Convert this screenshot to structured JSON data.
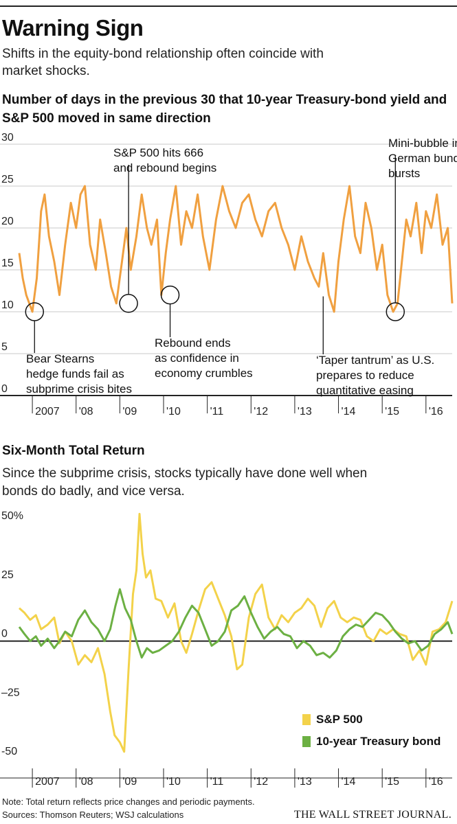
{
  "header": {
    "title": "Warning Sign",
    "subtitle": "Shifts in the equity-bond relationship often coincide with market shocks."
  },
  "footer": {
    "note": "Note: Total return reflects price changes and periodic payments.",
    "sources": "Sources: Thomson Reuters; WSJ calculations",
    "logo": "THE WALL STREET JOURNAL."
  },
  "colors": {
    "orange": "#f0a040",
    "yellow": "#f3d24a",
    "green": "#6cb043",
    "grid": "#c9c9c9"
  },
  "chart_data": [
    {
      "type": "line",
      "title": "Number of days in the previous 30 that 10-year Treasury-bond yield and S&P 500 moved in same direction",
      "xlabel": "",
      "ylabel": "",
      "xlim": [
        2006.7,
        2016.6
      ],
      "ylim": [
        0,
        30
      ],
      "yticks": [
        0,
        5,
        10,
        15,
        20,
        25,
        30
      ],
      "xticks": [
        {
          "label": "2007",
          "value": 2007.0
        },
        {
          "label": "'08",
          "value": 2008.0
        },
        {
          "label": "'09",
          "value": 2009.0
        },
        {
          "label": "'10",
          "value": 2010.0
        },
        {
          "label": "'11",
          "value": 2011.0
        },
        {
          "label": "'12",
          "value": 2012.0
        },
        {
          "label": "'13",
          "value": 2013.0
        },
        {
          "label": "'14",
          "value": 2014.0
        },
        {
          "label": "'15",
          "value": 2015.0
        },
        {
          "label": "'16",
          "value": 2016.0
        }
      ],
      "grid": true,
      "series": [
        {
          "x": [
            2006.7,
            2006.78,
            2006.86,
            2007.0,
            2007.1,
            2007.2,
            2007.28,
            2007.38,
            2007.5,
            2007.62,
            2007.75,
            2007.88,
            2008.0,
            2008.1,
            2008.2,
            2008.32,
            2008.45,
            2008.55,
            2008.68,
            2008.8,
            2008.92,
            2009.05,
            2009.15,
            2009.25,
            2009.38,
            2009.5,
            2009.62,
            2009.72,
            2009.85,
            2009.95,
            2010.05,
            2010.15,
            2010.28,
            2010.4,
            2010.52,
            2010.65,
            2010.78,
            2010.9,
            2011.05,
            2011.2,
            2011.35,
            2011.5,
            2011.65,
            2011.8,
            2011.95,
            2012.1,
            2012.25,
            2012.4,
            2012.55,
            2012.7,
            2012.85,
            2013.0,
            2013.15,
            2013.3,
            2013.45,
            2013.55,
            2013.65,
            2013.78,
            2013.9,
            2014.0,
            2014.12,
            2014.25,
            2014.38,
            2014.5,
            2014.62,
            2014.75,
            2014.88,
            2015.0,
            2015.12,
            2015.25,
            2015.35,
            2015.45,
            2015.55,
            2015.65,
            2015.78,
            2015.9,
            2016.0,
            2016.12,
            2016.25,
            2016.38,
            2016.5,
            2016.6
          ],
          "y": [
            17,
            14,
            12,
            10,
            14,
            22,
            24,
            19,
            16,
            12,
            18,
            23,
            20,
            24,
            25,
            18,
            15,
            21,
            17,
            13,
            11,
            16,
            20,
            15,
            19,
            24,
            20,
            18,
            21,
            12,
            17,
            21,
            25,
            18,
            22,
            20,
            24,
            19,
            15,
            21,
            25,
            22,
            20,
            23,
            24,
            21,
            19,
            22,
            23,
            20,
            18,
            15,
            19,
            16,
            14,
            13,
            17,
            12,
            10,
            16,
            21,
            25,
            19,
            17,
            23,
            20,
            15,
            18,
            12,
            10,
            11,
            16,
            21,
            19,
            23,
            17,
            22,
            20,
            24,
            18,
            20,
            11
          ]
        }
      ]
    },
    {
      "type": "line",
      "title": "Six-Month Total Return",
      "subtitle": "Since the subprime crisis, stocks typically have done well when bonds do badly, and vice versa.",
      "xlabel": "",
      "ylabel": "",
      "xlim": [
        2006.7,
        2016.6
      ],
      "ylim": [
        -50,
        55
      ],
      "yticks": [
        {
          "label": "50%",
          "value": 50
        },
        {
          "label": "25",
          "value": 25
        },
        {
          "label": "0",
          "value": 0
        },
        {
          "label": "–25",
          "value": -25
        },
        {
          "label": "-50",
          "value": -50
        }
      ],
      "xticks": [
        {
          "label": "2007",
          "value": 2007.0
        },
        {
          "label": "'08",
          "value": 2008.0
        },
        {
          "label": "'09",
          "value": 2009.0
        },
        {
          "label": "'10",
          "value": 2010.0
        },
        {
          "label": "'11",
          "value": 2011.0
        },
        {
          "label": "'12",
          "value": 2012.0
        },
        {
          "label": "'13",
          "value": 2013.0
        },
        {
          "label": "'14",
          "value": 2014.0
        },
        {
          "label": "'15",
          "value": 2015.0
        },
        {
          "label": "'16",
          "value": 2016.0
        }
      ],
      "grid": false,
      "legend": "bottom-right",
      "series": [
        {
          "name": "S&P 500",
          "x": [
            2006.7,
            2006.82,
            2006.95,
            2007.08,
            2007.2,
            2007.35,
            2007.5,
            2007.62,
            2007.75,
            2007.9,
            2008.05,
            2008.2,
            2008.35,
            2008.5,
            2008.65,
            2008.78,
            2008.88,
            2009.0,
            2009.1,
            2009.2,
            2009.3,
            2009.38,
            2009.45,
            2009.52,
            2009.6,
            2009.7,
            2009.82,
            2009.95,
            2010.1,
            2010.25,
            2010.4,
            2010.52,
            2010.65,
            2010.8,
            2010.95,
            2011.1,
            2011.25,
            2011.4,
            2011.55,
            2011.68,
            2011.8,
            2011.95,
            2012.1,
            2012.25,
            2012.4,
            2012.55,
            2012.7,
            2012.85,
            2013.0,
            2013.15,
            2013.3,
            2013.45,
            2013.6,
            2013.75,
            2013.9,
            2014.05,
            2014.2,
            2014.35,
            2014.5,
            2014.65,
            2014.8,
            2014.95,
            2015.1,
            2015.25,
            2015.4,
            2015.55,
            2015.7,
            2015.85,
            2016.0,
            2016.15,
            2016.3,
            2016.45,
            2016.6
          ],
          "y": [
            14,
            12,
            9,
            11,
            5,
            7,
            10,
            -1,
            4,
            0,
            -10,
            -6,
            -9,
            -3,
            -14,
            -30,
            -40,
            -43,
            -47,
            -12,
            20,
            30,
            54,
            37,
            27,
            30,
            18,
            17,
            10,
            16,
            0,
            -5,
            3,
            13,
            22,
            25,
            18,
            11,
            2,
            -12,
            -10,
            10,
            20,
            24,
            10,
            5,
            11,
            8,
            12,
            14,
            18,
            15,
            6,
            14,
            17,
            10,
            8,
            10,
            9,
            2,
            0,
            5,
            3,
            5,
            3,
            2,
            -8,
            -4,
            -10,
            4,
            5,
            8,
            17
          ]
        },
        {
          "name": "10-year Treasury bond",
          "x": [
            2006.7,
            2006.82,
            2006.95,
            2007.08,
            2007.2,
            2007.35,
            2007.5,
            2007.62,
            2007.75,
            2007.9,
            2008.05,
            2008.2,
            2008.35,
            2008.5,
            2008.65,
            2008.78,
            2008.9,
            2009.0,
            2009.12,
            2009.25,
            2009.38,
            2009.5,
            2009.62,
            2009.75,
            2009.9,
            2010.05,
            2010.2,
            2010.35,
            2010.5,
            2010.65,
            2010.8,
            2010.95,
            2011.1,
            2011.25,
            2011.4,
            2011.55,
            2011.7,
            2011.85,
            2012.0,
            2012.15,
            2012.3,
            2012.45,
            2012.6,
            2012.75,
            2012.9,
            2013.05,
            2013.2,
            2013.35,
            2013.5,
            2013.65,
            2013.8,
            2013.95,
            2014.1,
            2014.25,
            2014.4,
            2014.55,
            2014.7,
            2014.85,
            2015.0,
            2015.15,
            2015.3,
            2015.45,
            2015.6,
            2015.75,
            2015.9,
            2016.05,
            2016.2,
            2016.35,
            2016.5,
            2016.6
          ],
          "y": [
            6,
            3,
            0,
            2,
            -2,
            1,
            -3,
            0,
            4,
            2,
            9,
            13,
            8,
            5,
            0,
            5,
            15,
            22,
            14,
            9,
            0,
            -7,
            -3,
            -5,
            -4,
            -2,
            0,
            4,
            10,
            15,
            12,
            5,
            -2,
            0,
            4,
            13,
            15,
            19,
            12,
            6,
            1,
            4,
            6,
            3,
            2,
            -3,
            0,
            -2,
            -6,
            -5,
            -7,
            -4,
            2,
            5,
            7,
            6,
            9,
            12,
            11,
            8,
            4,
            1,
            -1,
            0,
            -4,
            -2,
            3,
            5,
            8,
            3
          ]
        }
      ]
    }
  ],
  "annotations1": [
    {
      "lines": [
        "Bear Stearns",
        "hedge funds fail as",
        "subprime crisis bites"
      ],
      "circle": true,
      "x": 2007.05,
      "y": 10
    },
    {
      "lines": [
        "S&P 500 hits 666",
        "and rebound begins"
      ],
      "circle": true,
      "x": 2009.2,
      "y": 11
    },
    {
      "lines": [
        "Rebound ends",
        "as confidence in",
        "economy crumbles"
      ],
      "circle": true,
      "x": 2010.15,
      "y": 12
    },
    {
      "lines": [
        "‘Taper tantrum’ as U.S.",
        "prepares to reduce",
        "quantitative easing"
      ],
      "circle": false,
      "x": 2013.65,
      "y": 12
    },
    {
      "lines": [
        "Mini-bubble in",
        "German bunds",
        "bursts"
      ],
      "circle": true,
      "x": 2015.3,
      "y": 10
    }
  ]
}
